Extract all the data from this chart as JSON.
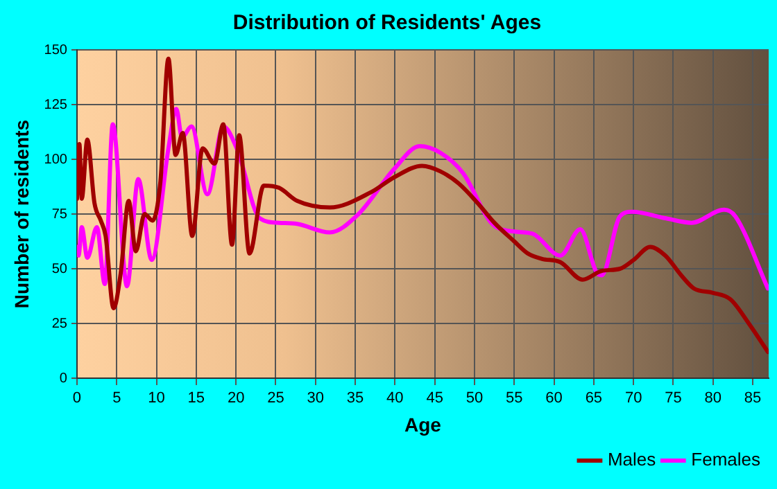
{
  "chart_data": {
    "type": "line",
    "title": "Distribution of Residents' Ages",
    "xlabel": "Age",
    "ylabel": "Number of residents",
    "xlim": [
      0,
      87
    ],
    "xticks": [
      0,
      5,
      10,
      15,
      20,
      25,
      30,
      35,
      40,
      45,
      50,
      55,
      60,
      65,
      70,
      75,
      80,
      85
    ],
    "ylim": [
      0,
      150
    ],
    "yticks": [
      0,
      25,
      50,
      75,
      100,
      125,
      150
    ],
    "grid": true,
    "legend": "bottom right",
    "marker": "none",
    "line_style": "solid",
    "series": [
      {
        "name": "Males",
        "color": "#a00000",
        "x": [
          0,
          0.3,
          0.6,
          1.3,
          2.2,
          3,
          3.6,
          4.6,
          5.5,
          6.5,
          7.4,
          8.5,
          9.5,
          10.5,
          11.5,
          12.4,
          13.3,
          14.5,
          15.8,
          17.3,
          18.4,
          19.5,
          20.4,
          21.7,
          23.5,
          25.4,
          27.7,
          31.8,
          37,
          40,
          43.4,
          45.7,
          48,
          50.4,
          52.5,
          55,
          56.7,
          58.5,
          60.8,
          63.6,
          66,
          68.3,
          70,
          72.1,
          74,
          76,
          77.6,
          80,
          82.2,
          84.5,
          86.9
        ],
        "values": [
          82,
          107,
          82,
          109,
          80,
          72,
          65,
          32,
          48,
          81,
          58,
          75,
          72,
          90,
          146,
          102,
          112,
          65,
          105,
          98,
          116,
          61,
          111,
          57,
          88,
          87,
          81,
          78,
          85,
          92,
          97,
          94.5,
          89,
          80,
          71,
          62.5,
          57,
          54.5,
          53,
          45,
          49,
          50,
          54,
          60,
          56,
          47,
          41,
          39,
          36,
          25,
          12
        ]
      },
      {
        "name": "Females",
        "color": "#ff00ff",
        "x": [
          0,
          0.2,
          0.6,
          1.3,
          2.5,
          3.5,
          4.5,
          6.3,
          7.7,
          9.4,
          11.5,
          12.5,
          13.2,
          14.4,
          16.4,
          18.4,
          20.2,
          23,
          25.4,
          27.7,
          31.8,
          35.3,
          39.9,
          43.1,
          45.7,
          48.6,
          52.1,
          55,
          57.3,
          60.8,
          63.3,
          65.4,
          66,
          68.3,
          69.8,
          74.1,
          77.3,
          81.4,
          82.8,
          86.9
        ],
        "values": [
          60,
          56,
          69,
          55,
          69,
          43,
          116,
          42,
          91,
          54,
          105,
          123,
          110,
          115,
          84,
          115,
          104,
          73,
          71,
          70.5,
          66.6,
          74.6,
          95.6,
          106,
          103,
          93.5,
          71,
          67,
          66,
          56,
          68,
          48,
          47,
          74,
          76,
          73,
          71,
          77,
          74,
          41
        ]
      }
    ]
  }
}
